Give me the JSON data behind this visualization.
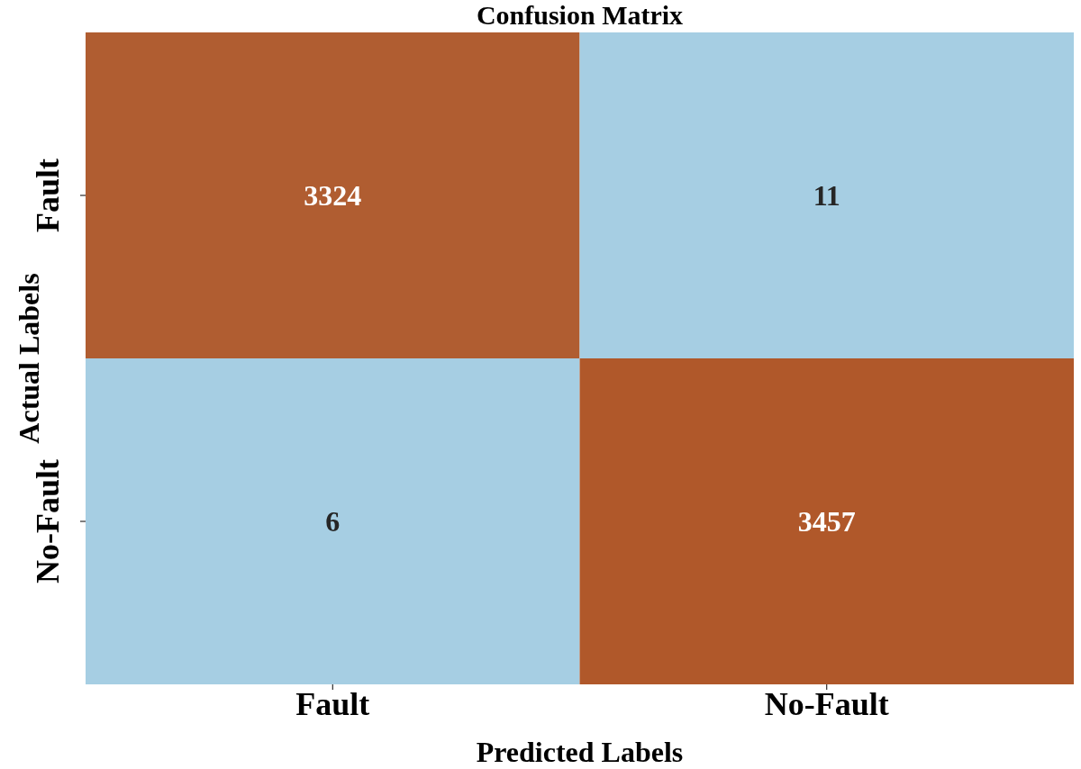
{
  "chart_data": {
    "type": "heatmap",
    "title": "Confusion Matrix",
    "xlabel": "Predicted Labels",
    "ylabel": "Actual Labels",
    "categories": [
      "Fault",
      "No-Fault"
    ],
    "y_categories": [
      "Fault",
      "No-Fault"
    ],
    "cells": [
      [
        3324,
        11
      ],
      [
        6,
        3457
      ]
    ],
    "colors": [
      "#a6cee3",
      "#b0582a"
    ],
    "data_labels": true
  }
}
